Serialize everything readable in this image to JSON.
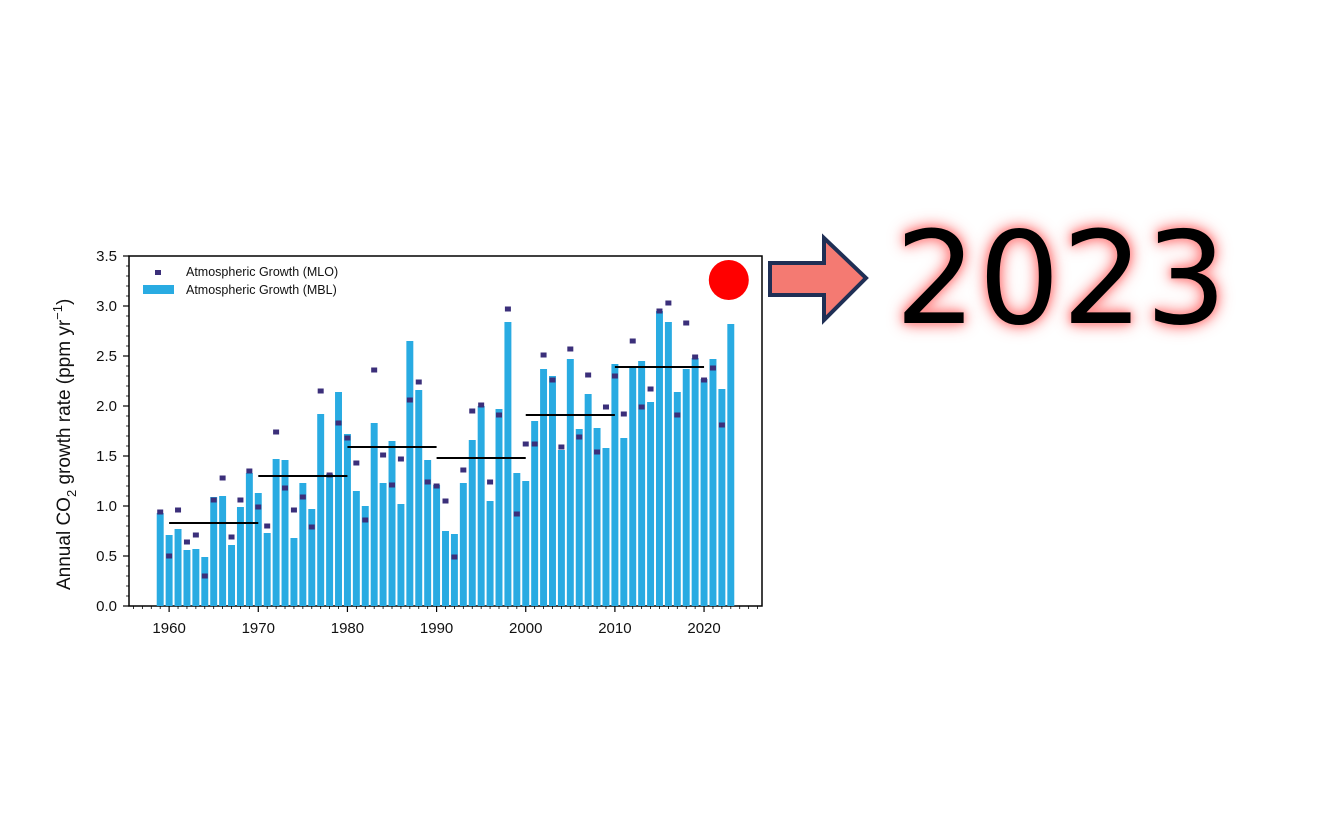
{
  "highlight_year_label": "2023",
  "colors": {
    "bar": "#29abe2",
    "point": "#3b2f7a",
    "decade_line": "#000000",
    "marker_dot": "#ff0000",
    "arrow_fill": "#f47a72",
    "arrow_stroke": "#1f2f55"
  },
  "chart_data": {
    "type": "bar",
    "ylabel_main": "Annual CO",
    "ylabel_sub": "2",
    "ylabel_rest": " growth rate (ppm yr",
    "ylabel_sup": "−1",
    "ylabel_end": ")",
    "xlim": [
      1955.5,
      2026.5
    ],
    "ylim": [
      0,
      3.5
    ],
    "x_ticks": [
      1960,
      1970,
      1980,
      1990,
      2000,
      2010,
      2020
    ],
    "y_ticks": [
      0.0,
      0.5,
      1.0,
      1.5,
      2.0,
      2.5,
      3.0,
      3.5
    ],
    "legend_placement": "top-left",
    "series": [
      {
        "name": "Atmospheric Growth (MLO)",
        "kind": "points",
        "x": [
          1959,
          1960,
          1961,
          1962,
          1963,
          1964,
          1965,
          1966,
          1967,
          1968,
          1969,
          1970,
          1971,
          1972,
          1973,
          1974,
          1975,
          1976,
          1977,
          1978,
          1979,
          1980,
          1981,
          1982,
          1983,
          1984,
          1985,
          1986,
          1987,
          1988,
          1989,
          1990,
          1991,
          1992,
          1993,
          1994,
          1995,
          1996,
          1997,
          1998,
          1999,
          2000,
          2001,
          2002,
          2003,
          2004,
          2005,
          2006,
          2007,
          2008,
          2009,
          2010,
          2011,
          2012,
          2013,
          2014,
          2015,
          2016,
          2017,
          2018,
          2019,
          2020,
          2021,
          2022
        ],
        "values": [
          0.94,
          0.5,
          0.96,
          0.64,
          0.71,
          0.3,
          1.06,
          1.28,
          0.69,
          1.06,
          1.35,
          0.99,
          0.8,
          1.74,
          1.18,
          0.96,
          1.09,
          0.79,
          2.15,
          1.31,
          1.83,
          1.68,
          1.43,
          0.86,
          2.36,
          1.51,
          1.21,
          1.47,
          2.06,
          2.24,
          1.24,
          1.2,
          1.05,
          0.49,
          1.36,
          1.95,
          2.01,
          1.24,
          1.91,
          2.97,
          0.92,
          1.62,
          1.62,
          2.51,
          2.26,
          1.59,
          2.57,
          1.69,
          2.31,
          1.54,
          1.99,
          2.3,
          1.92,
          2.65,
          1.99,
          2.17,
          2.95,
          3.03,
          1.91,
          2.83,
          2.49,
          2.26,
          2.38,
          1.81
        ]
      },
      {
        "name": "Atmospheric Growth (MBL)",
        "kind": "bars",
        "x": [
          1959,
          1960,
          1961,
          1962,
          1963,
          1964,
          1965,
          1966,
          1967,
          1968,
          1969,
          1970,
          1971,
          1972,
          1973,
          1974,
          1975,
          1976,
          1977,
          1978,
          1979,
          1980,
          1981,
          1982,
          1983,
          1984,
          1985,
          1986,
          1987,
          1988,
          1989,
          1990,
          1991,
          1992,
          1993,
          1994,
          1995,
          1996,
          1997,
          1998,
          1999,
          2000,
          2001,
          2002,
          2003,
          2004,
          2005,
          2006,
          2007,
          2008,
          2009,
          2010,
          2011,
          2012,
          2013,
          2014,
          2015,
          2016,
          2017,
          2018,
          2019,
          2020,
          2021,
          2022,
          2023
        ],
        "values": [
          0.93,
          0.71,
          0.77,
          0.56,
          0.57,
          0.49,
          1.09,
          1.1,
          0.61,
          0.99,
          1.33,
          1.13,
          0.73,
          1.47,
          1.46,
          0.68,
          1.23,
          0.97,
          1.92,
          1.32,
          2.14,
          1.72,
          1.15,
          1.0,
          1.83,
          1.23,
          1.65,
          1.02,
          2.65,
          2.16,
          1.46,
          1.21,
          0.75,
          0.72,
          1.23,
          1.66,
          2.0,
          1.05,
          1.97,
          2.84,
          1.33,
          1.25,
          1.85,
          2.37,
          2.3,
          1.56,
          2.47,
          1.77,
          2.12,
          1.78,
          1.58,
          2.42,
          1.68,
          2.4,
          2.45,
          2.04,
          2.95,
          2.84,
          2.14,
          2.37,
          2.48,
          2.27,
          2.47,
          2.17,
          2.82
        ]
      }
    ],
    "decade_means": [
      {
        "x0": 1960,
        "x1": 1970,
        "value": 0.83
      },
      {
        "x0": 1970,
        "x1": 1980,
        "value": 1.3
      },
      {
        "x0": 1980,
        "x1": 1990,
        "value": 1.59
      },
      {
        "x0": 1990,
        "x1": 2000,
        "value": 1.48
      },
      {
        "x0": 2000,
        "x1": 2010,
        "value": 1.91
      },
      {
        "x0": 2010,
        "x1": 2020,
        "value": 2.39
      }
    ],
    "highlight_marker": {
      "x": 2023
    }
  }
}
